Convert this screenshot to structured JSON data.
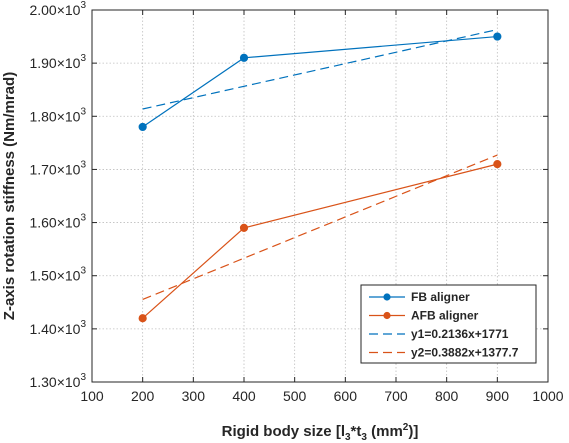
{
  "chart_data": {
    "type": "line",
    "xlabel": "Rigid body size [l",
    "xlabel_sub1": "3",
    "xlabel_mid": "*t",
    "xlabel_sub2": "3",
    "xlabel_tail": " (mm",
    "xlabel_sup": "2",
    "xlabel_end": ")]",
    "ylabel": "Z-axis rotation stiffness (Nm/mrad)",
    "xlim": [
      100,
      1000
    ],
    "ylim": [
      1300,
      2000
    ],
    "xticks": [
      100,
      200,
      300,
      400,
      500,
      600,
      700,
      800,
      900,
      1000
    ],
    "yticks": [
      {
        "value": 1300,
        "mantissa": "1.30",
        "base": "×10",
        "exp": "3"
      },
      {
        "value": 1400,
        "mantissa": "1.40",
        "base": "×10",
        "exp": "3"
      },
      {
        "value": 1500,
        "mantissa": "1.50",
        "base": "×10",
        "exp": "3"
      },
      {
        "value": 1600,
        "mantissa": "1.60",
        "base": "×10",
        "exp": "3"
      },
      {
        "value": 1700,
        "mantissa": "1.70",
        "base": "×10",
        "exp": "3"
      },
      {
        "value": 1800,
        "mantissa": "1.80",
        "base": "×10",
        "exp": "3"
      },
      {
        "value": 1900,
        "mantissa": "1.90",
        "base": "×10",
        "exp": "3"
      },
      {
        "value": 2000,
        "mantissa": "2.00",
        "base": "×10",
        "exp": "3"
      }
    ],
    "grid": true,
    "legend_position": "bottom-right",
    "series": [
      {
        "name": "FB aligner",
        "x": [
          200,
          400,
          900
        ],
        "y": [
          1780,
          1910,
          1950
        ],
        "color": "#0072BD",
        "style": "solid",
        "marker": true
      },
      {
        "name": "AFB aligner",
        "x": [
          200,
          400,
          900
        ],
        "y": [
          1420,
          1590,
          1710
        ],
        "color": "#D95319",
        "style": "solid",
        "marker": true
      },
      {
        "name": "y1=0.2136x+1771",
        "x": [
          200,
          900
        ],
        "y": [
          1813.7,
          1963.2
        ],
        "color": "#0072BD",
        "style": "dashed",
        "marker": false
      },
      {
        "name": "y2=0.3882x+1377.7",
        "x": [
          200,
          900
        ],
        "y": [
          1455.3,
          1727.1
        ],
        "color": "#D95319",
        "style": "dashed",
        "marker": false
      }
    ]
  }
}
